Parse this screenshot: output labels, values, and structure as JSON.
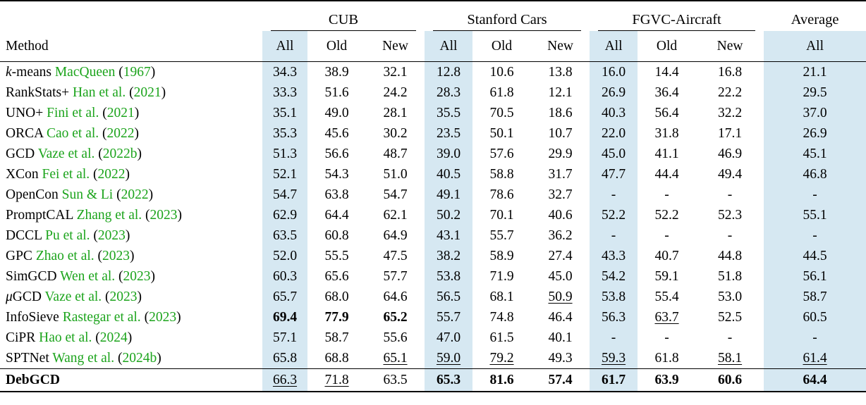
{
  "colors": {
    "highlight": "#d6e8f2",
    "citation_green": "#1ca41c"
  },
  "table": {
    "method_header": "Method",
    "groups": [
      {
        "label": "CUB",
        "span": 3,
        "underline": true
      },
      {
        "label": "Stanford Cars",
        "span": 3,
        "underline": true
      },
      {
        "label": "FGVC-Aircraft",
        "span": 3,
        "underline": true
      },
      {
        "label": "Average",
        "span": 1,
        "underline": false
      }
    ],
    "sub_headers": [
      "All",
      "Old",
      "New",
      "All",
      "Old",
      "New",
      "All",
      "Old",
      "New",
      "All"
    ],
    "highlight_columns": [
      0,
      3,
      6,
      9
    ],
    "rows": [
      {
        "method": {
          "italic_prefix": "k",
          "name": "-means",
          "cite": "MacQueen",
          "year": "1967"
        },
        "cells": [
          "34.3",
          "38.9",
          "32.1",
          "12.8",
          "10.6",
          "13.8",
          "16.0",
          "14.4",
          "16.8",
          "21.1"
        ]
      },
      {
        "method": {
          "name": "RankStats+",
          "cite": "Han et al.",
          "year": "2021"
        },
        "cells": [
          "33.3",
          "51.6",
          "24.2",
          "28.3",
          "61.8",
          "12.1",
          "26.9",
          "36.4",
          "22.2",
          "29.5"
        ]
      },
      {
        "method": {
          "name": "UNO+",
          "cite": "Fini et al.",
          "year": "2021"
        },
        "cells": [
          "35.1",
          "49.0",
          "28.1",
          "35.5",
          "70.5",
          "18.6",
          "40.3",
          "56.4",
          "32.2",
          "37.0"
        ]
      },
      {
        "method": {
          "name": "ORCA",
          "cite": "Cao et al.",
          "year": "2022"
        },
        "cells": [
          "35.3",
          "45.6",
          "30.2",
          "23.5",
          "50.1",
          "10.7",
          "22.0",
          "31.8",
          "17.1",
          "26.9"
        ]
      },
      {
        "method": {
          "name": "GCD",
          "cite": "Vaze et al.",
          "year": "2022b"
        },
        "cells": [
          "51.3",
          "56.6",
          "48.7",
          "39.0",
          "57.6",
          "29.9",
          "45.0",
          "41.1",
          "46.9",
          "45.1"
        ]
      },
      {
        "method": {
          "name": "XCon",
          "cite": "Fei et al.",
          "year": "2022"
        },
        "cells": [
          "52.1",
          "54.3",
          "51.0",
          "40.5",
          "58.8",
          "31.7",
          "47.7",
          "44.4",
          "49.4",
          "46.8"
        ]
      },
      {
        "method": {
          "name": "OpenCon",
          "cite": "Sun & Li",
          "year": "2022"
        },
        "cells": [
          "54.7",
          "63.8",
          "54.7",
          "49.1",
          "78.6",
          "32.7",
          "-",
          "-",
          "-",
          "-"
        ]
      },
      {
        "method": {
          "name": "PromptCAL",
          "cite": "Zhang et al.",
          "year": "2023"
        },
        "cells": [
          "62.9",
          "64.4",
          "62.1",
          "50.2",
          "70.1",
          "40.6",
          "52.2",
          "52.2",
          "52.3",
          "55.1"
        ]
      },
      {
        "method": {
          "name": "DCCL",
          "cite": "Pu et al.",
          "year": "2023"
        },
        "cells": [
          "63.5",
          "60.8",
          "64.9",
          "43.1",
          "55.7",
          "36.2",
          "-",
          "-",
          "-",
          "-"
        ]
      },
      {
        "method": {
          "name": "GPC",
          "cite": "Zhao et al.",
          "year": "2023"
        },
        "cells": [
          "52.0",
          "55.5",
          "47.5",
          "38.2",
          "58.9",
          "27.4",
          "43.3",
          "40.7",
          "44.8",
          "44.5"
        ]
      },
      {
        "method": {
          "name": "SimGCD",
          "cite": "Wen et al.",
          "year": "2023"
        },
        "cells": [
          "60.3",
          "65.6",
          "57.7",
          "53.8",
          "71.9",
          "45.0",
          "54.2",
          "59.1",
          "51.8",
          "56.1"
        ]
      },
      {
        "method": {
          "italic_prefix": "μ",
          "name": "GCD",
          "cite": "Vaze et al.",
          "year": "2023"
        },
        "cells": [
          "65.7",
          "68.0",
          "64.6",
          "56.5",
          "68.1",
          {
            "v": "50.9",
            "s": "u"
          },
          "53.8",
          "55.4",
          "53.0",
          "58.7"
        ]
      },
      {
        "method": {
          "name": "InfoSieve",
          "cite": "Rastegar et al.",
          "year": "2023"
        },
        "cells": [
          {
            "v": "69.4",
            "s": "b"
          },
          {
            "v": "77.9",
            "s": "b"
          },
          {
            "v": "65.2",
            "s": "b"
          },
          "55.7",
          "74.8",
          "46.4",
          "56.3",
          {
            "v": "63.7",
            "s": "u"
          },
          "52.5",
          "60.5"
        ]
      },
      {
        "method": {
          "name": "CiPR",
          "cite": "Hao et al.",
          "year": "2024"
        },
        "cells": [
          "57.1",
          "58.7",
          "55.6",
          "47.0",
          "61.5",
          "40.1",
          "-",
          "-",
          "-",
          "-"
        ]
      },
      {
        "method": {
          "name": "SPTNet",
          "cite": "Wang et al.",
          "year": "2024b"
        },
        "cells": [
          "65.8",
          "68.8",
          {
            "v": "65.1",
            "s": "u"
          },
          {
            "v": "59.0",
            "s": "u"
          },
          {
            "v": "79.2",
            "s": "u"
          },
          "49.3",
          {
            "v": "59.3",
            "s": "u"
          },
          "61.8",
          {
            "v": "58.1",
            "s": "u"
          },
          {
            "v": "61.4",
            "s": "u"
          }
        ]
      }
    ],
    "final_row": {
      "method": {
        "name": "DebGCD",
        "bold": true
      },
      "cells": [
        {
          "v": "66.3",
          "s": "u"
        },
        {
          "v": "71.8",
          "s": "u"
        },
        "63.5",
        {
          "v": "65.3",
          "s": "b"
        },
        {
          "v": "81.6",
          "s": "b"
        },
        {
          "v": "57.4",
          "s": "b"
        },
        {
          "v": "61.7",
          "s": "b"
        },
        {
          "v": "63.9",
          "s": "b"
        },
        {
          "v": "60.6",
          "s": "b"
        },
        {
          "v": "64.4",
          "s": "b"
        }
      ]
    }
  }
}
